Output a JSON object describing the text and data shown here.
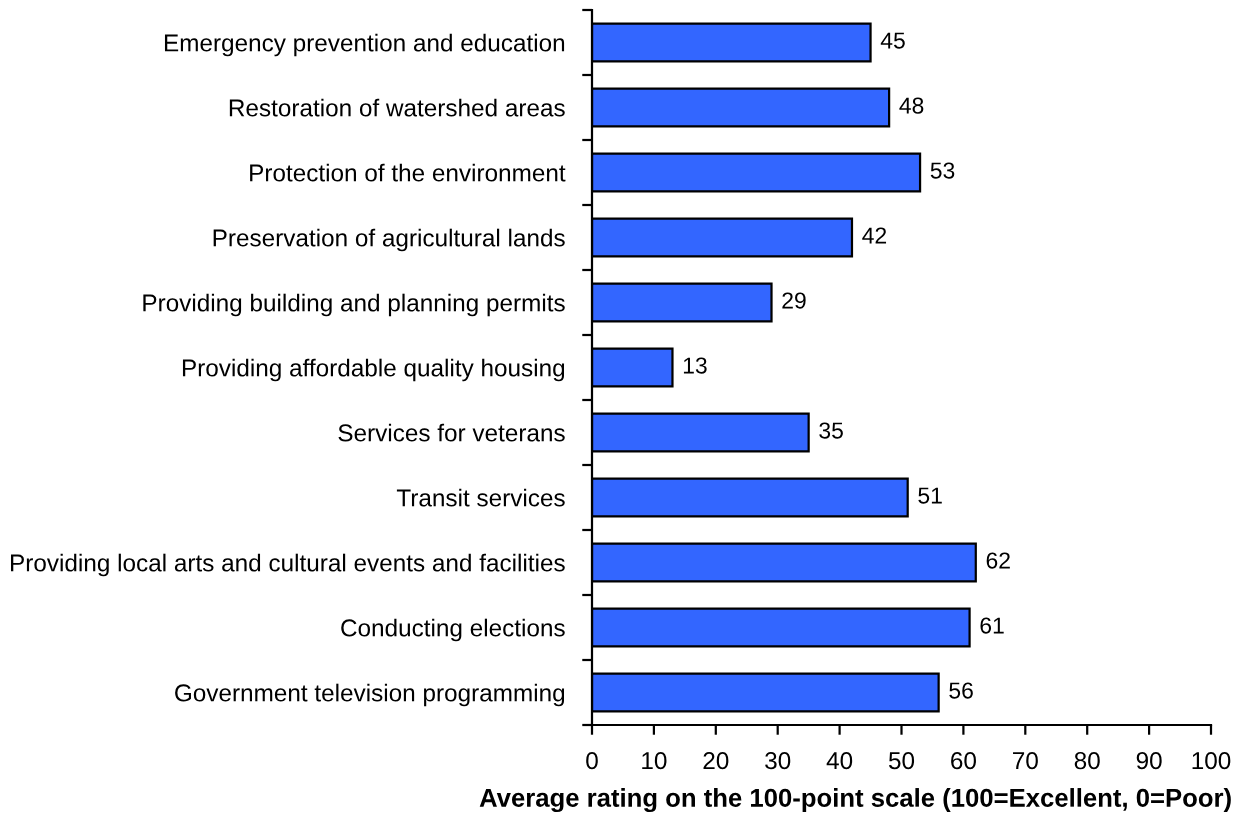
{
  "chart_data": {
    "type": "bar",
    "orientation": "horizontal",
    "categories": [
      "Emergency prevention and education",
      "Restoration of watershed areas",
      "Protection of the environment",
      "Preservation of agricultural lands",
      "Providing building and planning permits",
      "Providing affordable quality housing",
      "Services for veterans",
      "Transit services",
      "Providing local arts and cultural events and facilities",
      "Conducting elections",
      "Government television programming"
    ],
    "values": [
      45,
      48,
      53,
      42,
      29,
      13,
      35,
      51,
      62,
      61,
      56
    ],
    "color": "#3366ff",
    "data_labels": true,
    "xlabel": "Average rating on the 100-point scale (100=Excellent, 0=Poor)",
    "xlim": [
      0,
      100
    ],
    "xticks": [
      0,
      10,
      20,
      30,
      40,
      50,
      60,
      70,
      80,
      90,
      100
    ]
  }
}
